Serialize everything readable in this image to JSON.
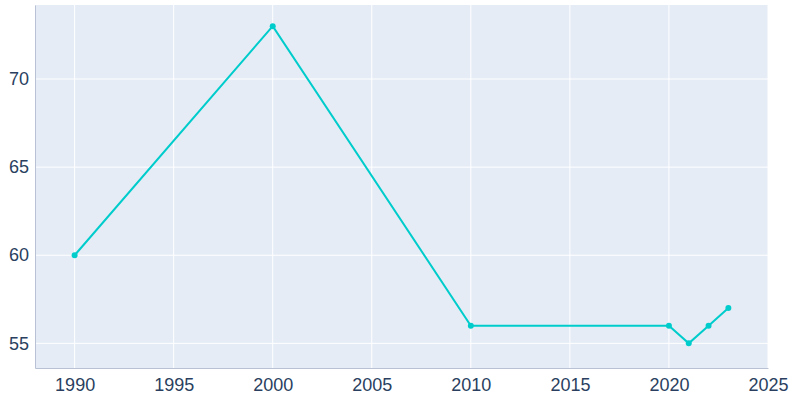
{
  "chart_data": {
    "type": "line",
    "x": [
      1990,
      2000,
      2010,
      2020,
      2021,
      2022,
      2023
    ],
    "values": [
      60,
      73,
      56,
      56,
      55,
      56,
      57
    ],
    "color": "#00cccc",
    "marker": "circle",
    "xlim": [
      1988,
      2025
    ],
    "xticks": [
      1990,
      1995,
      2000,
      2005,
      2010,
      2015,
      2020,
      2025
    ],
    "ylim": [
      53.6,
      74.2
    ],
    "yticks": [
      55,
      60,
      65,
      70
    ],
    "grid": true
  }
}
